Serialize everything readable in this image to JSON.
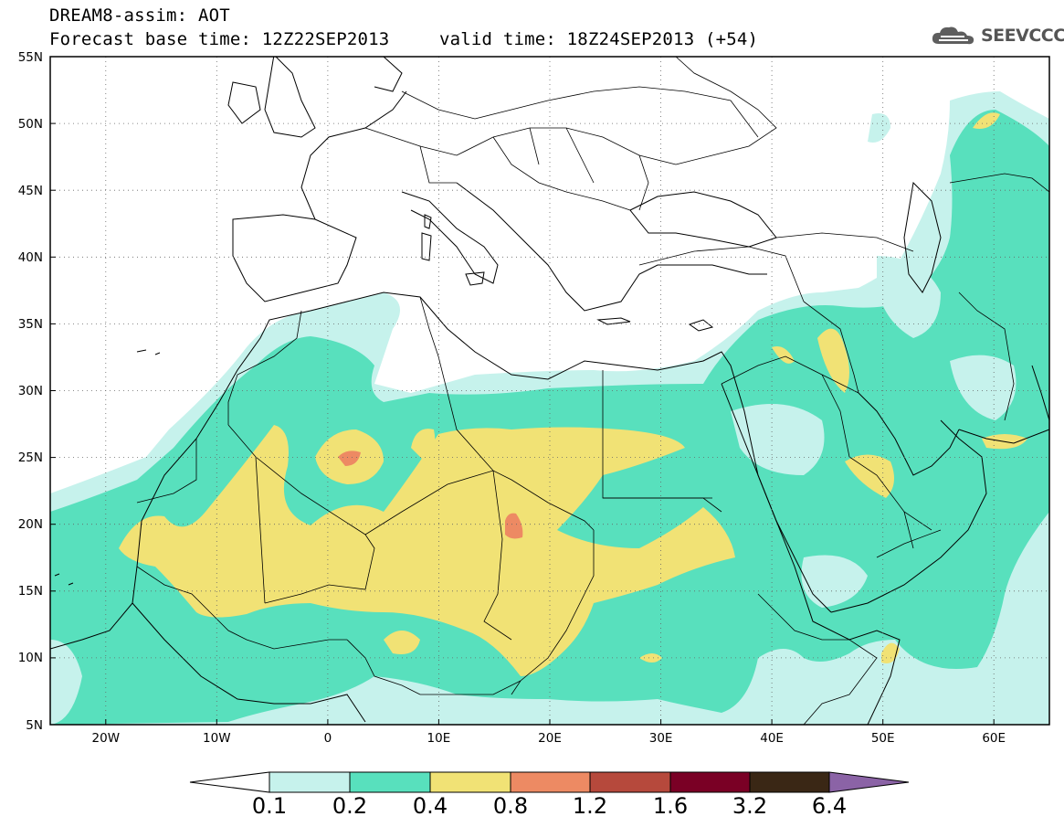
{
  "header": {
    "title_line1": "DREAM8-assim: AOT",
    "forecast_base": "Forecast base time: 12Z22SEP2013",
    "valid_time": "valid time: 18Z24SEP2013 (+54)",
    "logo_text": "SEEVCCC"
  },
  "map": {
    "lat_ticks": [
      "55N",
      "50N",
      "45N",
      "40N",
      "35N",
      "30N",
      "25N",
      "20N",
      "15N",
      "10N",
      "5N"
    ],
    "lon_ticks": [
      "20W",
      "10W",
      "0",
      "10E",
      "20E",
      "30E",
      "40E",
      "50E",
      "60E"
    ],
    "lat_range": [
      5,
      55
    ],
    "lon_range": [
      -25,
      65
    ],
    "grid": "dotted"
  },
  "colorbar": {
    "levels": [
      "0.1",
      "0.2",
      "0.4",
      "0.8",
      "1.2",
      "1.6",
      "3.2",
      "6.4"
    ],
    "colors": [
      "#ffffff",
      "#c6f2ec",
      "#58e0bd",
      "#f1e275",
      "#ed8a63",
      "#b6493c",
      "#7a0025",
      "#3a2715",
      "#8b63a6"
    ]
  }
}
